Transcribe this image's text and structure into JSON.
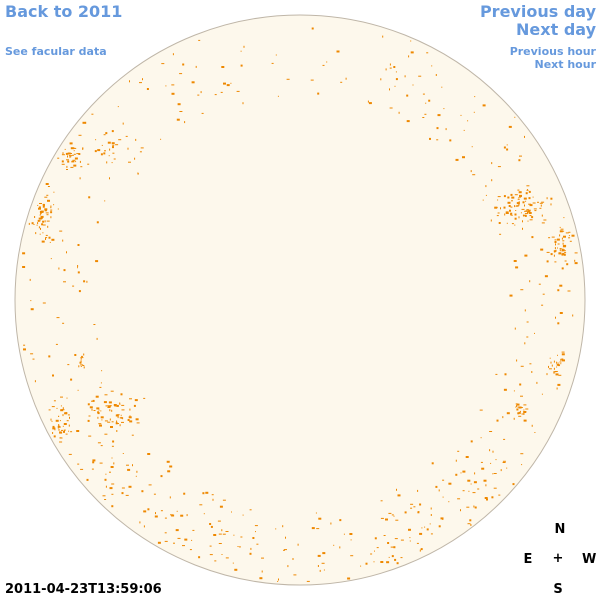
{
  "nav": {
    "back": "Back to 2011",
    "facular": "See facular data",
    "prev_day": "Previous day",
    "next_day": "Next day",
    "prev_hour": "Previous hour",
    "next_hour": "Next hour"
  },
  "timestamp": "2011-04-23T13:59:06",
  "compass": {
    "north": "N",
    "south": "S",
    "east": "E",
    "west": "W",
    "center": "+"
  },
  "colors": {
    "disk_fill": "#fdf8ec",
    "disk_edge": "#bfb6a8",
    "facula": "#ee8800",
    "link": "#6699dd"
  }
}
